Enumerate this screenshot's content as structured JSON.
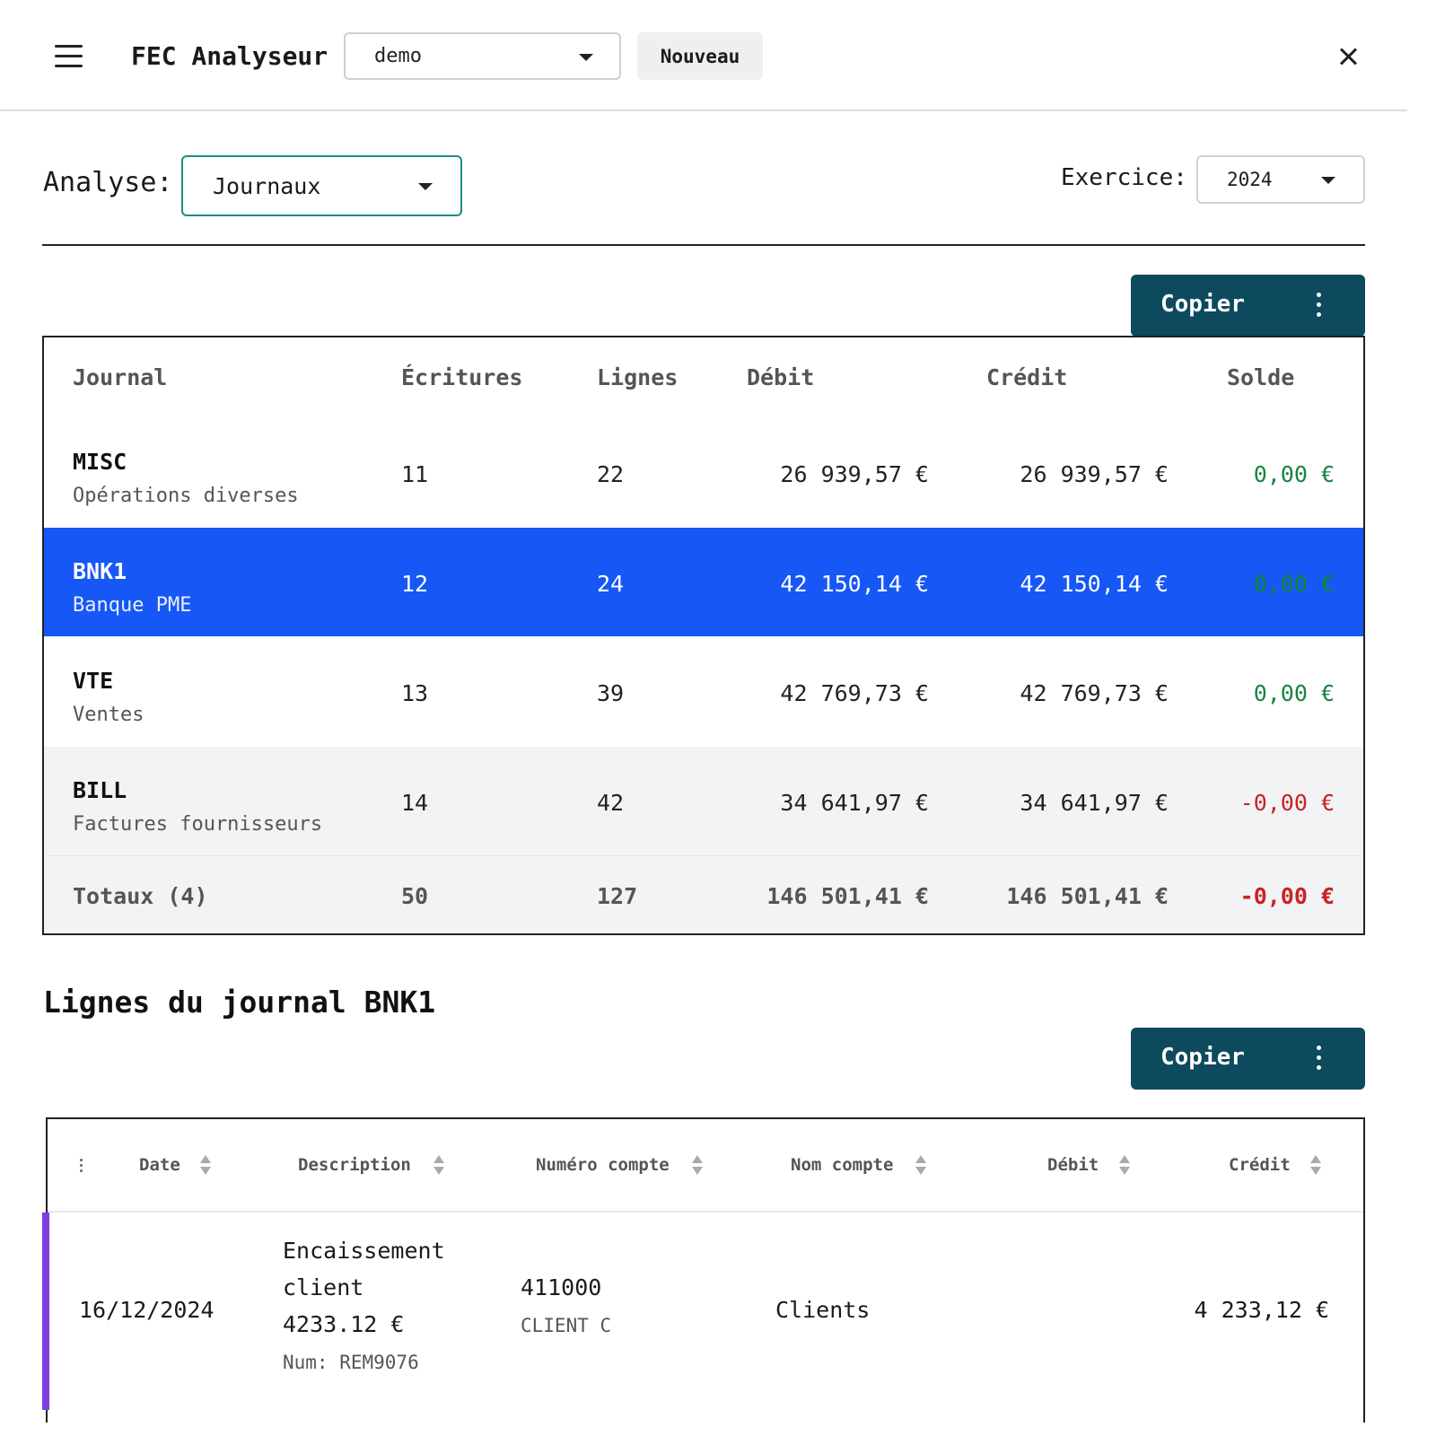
{
  "header": {
    "title": "FEC Analyseur",
    "project": "demo",
    "new_label": "Nouveau"
  },
  "analyse": {
    "label": "Analyse:",
    "value": "Journaux",
    "exercice_label": "Exercice:",
    "exercice_value": "2024"
  },
  "copy_label": "Copier",
  "journals": {
    "columns": [
      "Journal",
      "Écritures",
      "Lignes",
      "Débit",
      "Crédit",
      "Solde"
    ],
    "rows": [
      {
        "code": "MISC",
        "name": "Opérations diverses",
        "ecritures": "11",
        "lignes": "22",
        "debit": "26 939,57 €",
        "credit": "26 939,57 €",
        "solde": "0,00 €"
      },
      {
        "code": "BNK1",
        "name": "Banque PME",
        "ecritures": "12",
        "lignes": "24",
        "debit": "42 150,14 €",
        "credit": "42 150,14 €",
        "solde": "0,00 €"
      },
      {
        "code": "VTE",
        "name": "Ventes",
        "ecritures": "13",
        "lignes": "39",
        "debit": "42 769,73 €",
        "credit": "42 769,73 €",
        "solde": "0,00 €"
      },
      {
        "code": "BILL",
        "name": "Factures fournisseurs",
        "ecritures": "14",
        "lignes": "42",
        "debit": "34 641,97 €",
        "credit": "34 641,97 €",
        "solde": "-0,00 €"
      }
    ],
    "totals": {
      "label": "Totaux (4)",
      "ecritures": "50",
      "lignes": "127",
      "debit": "146 501,41 €",
      "credit": "146 501,41 €",
      "solde": "-0,00 €"
    },
    "colors": {
      "selected_row": "#1657f5",
      "positive": "#17853f",
      "negative": "#cc2222"
    }
  },
  "lines": {
    "title": "Lignes du journal BNK1",
    "columns": [
      "Date",
      "Description",
      "Numéro compte",
      "Nom compte",
      "Débit",
      "Crédit"
    ],
    "rows": [
      {
        "date": "16/12/2024",
        "description": [
          "Encaissement",
          "client",
          "4233.12 €"
        ],
        "num": "Num: REM9076",
        "compte": "411000",
        "compte_sub": "CLIENT C",
        "nom_compte": "Clients",
        "debit": "",
        "credit": "4 233,12 €"
      }
    ],
    "accent_color": "#7b3fe0"
  }
}
